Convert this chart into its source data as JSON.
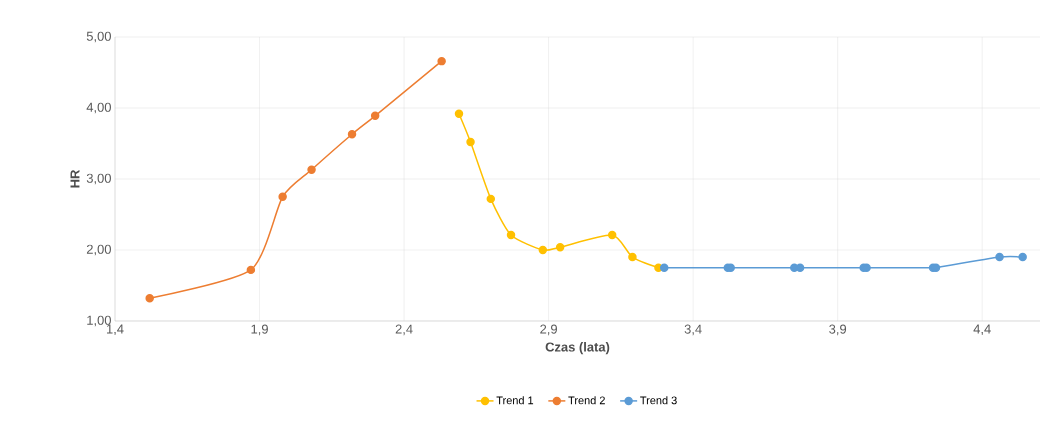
{
  "chart_data": {
    "type": "line",
    "xlabel": "Czas (lata)",
    "ylabel": "HR",
    "xlim": [
      1.4,
      4.6
    ],
    "ylim": [
      1,
      5
    ],
    "xticks": [
      {
        "value": 1.4,
        "label": "1,4"
      },
      {
        "value": 1.9,
        "label": "1,9"
      },
      {
        "value": 2.4,
        "label": "2,4"
      },
      {
        "value": 2.9,
        "label": "2,9"
      },
      {
        "value": 3.4,
        "label": "3,4"
      },
      {
        "value": 3.9,
        "label": "3,9"
      },
      {
        "value": 4.4,
        "label": "4,4"
      }
    ],
    "yticks": [
      {
        "value": 1,
        "label": "1,00"
      },
      {
        "value": 2,
        "label": "2,00"
      },
      {
        "value": 3,
        "label": "3,00"
      },
      {
        "value": 4,
        "label": "4,00"
      },
      {
        "value": 5,
        "label": "5,00"
      }
    ],
    "grid": true,
    "legend": "bottom",
    "marker": "circle",
    "line_style": "solid",
    "series": [
      {
        "name": "Trend 1",
        "color": "#ffc000",
        "x": [
          2.59,
          2.63,
          2.7,
          2.77,
          2.88,
          2.94,
          3.12,
          3.19,
          3.28
        ],
        "values": [
          3.92,
          3.52,
          2.72,
          2.21,
          2.0,
          2.04,
          2.21,
          1.9,
          1.75
        ]
      },
      {
        "name": "Trend 2",
        "color": "#ed7d31",
        "x": [
          1.52,
          1.87,
          1.98,
          2.08,
          2.22,
          2.3,
          2.53
        ],
        "values": [
          1.32,
          1.72,
          2.75,
          3.13,
          3.63,
          3.89,
          4.66
        ]
      },
      {
        "name": "Trend 3",
        "color": "#5b9bd5",
        "x": [
          3.3,
          3.52,
          3.53,
          3.75,
          3.77,
          3.99,
          4.0,
          4.23,
          4.24,
          4.46,
          4.54
        ],
        "values": [
          1.75,
          1.75,
          1.75,
          1.75,
          1.75,
          1.75,
          1.75,
          1.75,
          1.75,
          1.9,
          1.9
        ]
      }
    ]
  }
}
